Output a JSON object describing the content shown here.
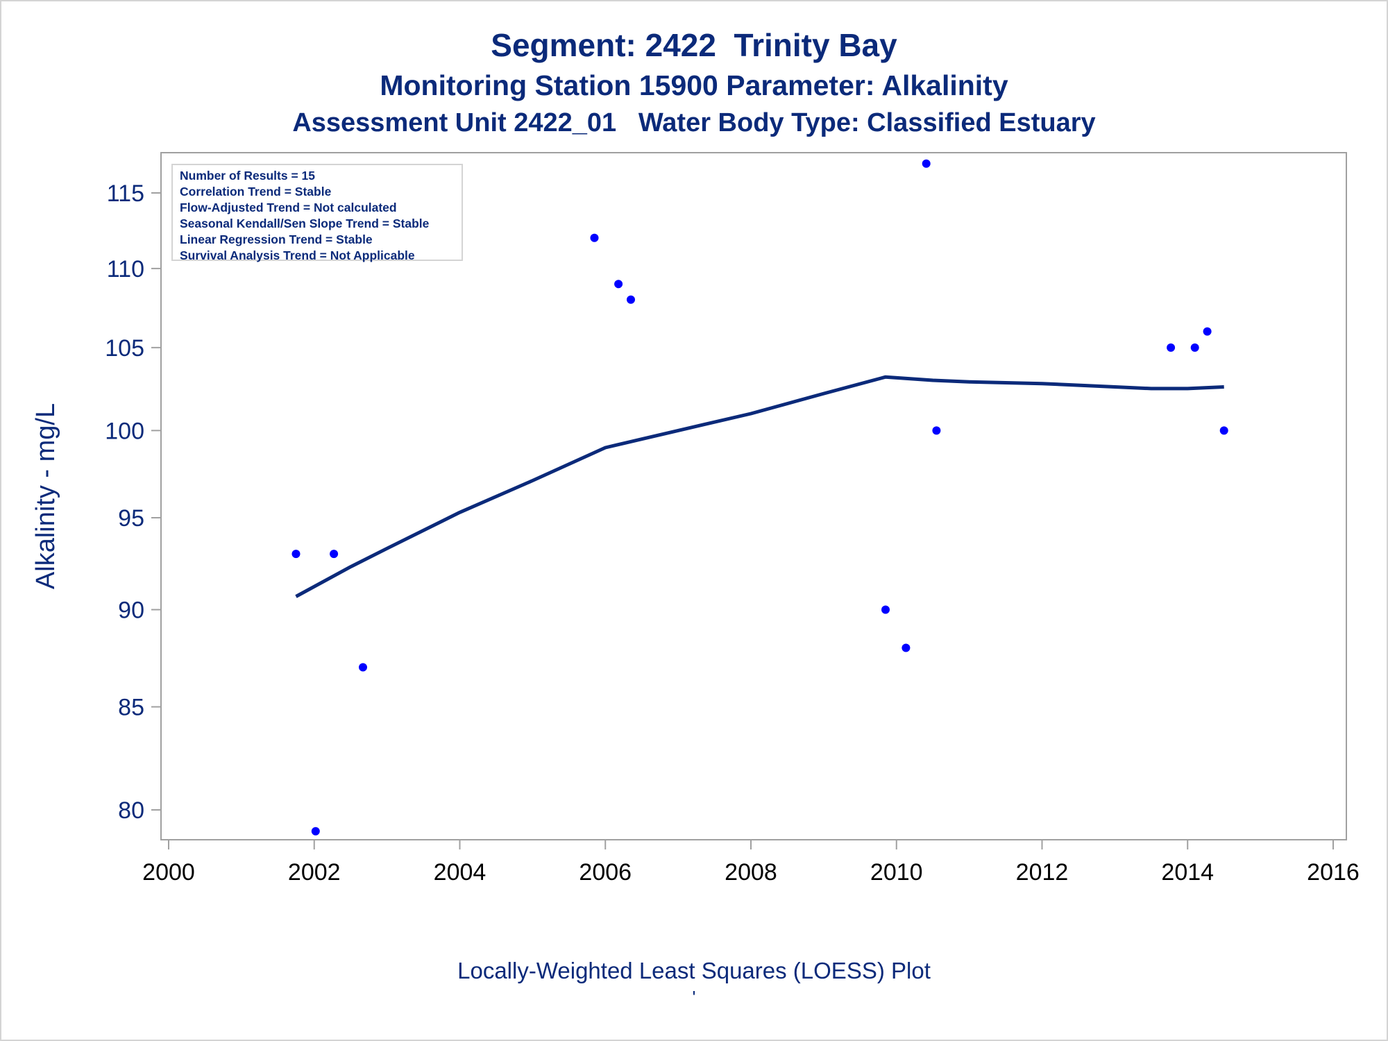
{
  "titles": {
    "line1": "Segment: 2422  Trinity Bay",
    "line2": "Monitoring Station 15900 Parameter: Alkalinity",
    "line3": "Assessment Unit 2422_01   Water Body Type: Classified Estuary"
  },
  "stats_box": [
    "Number of Results = 15",
    "Correlation Trend = Stable",
    "Flow-Adjusted Trend = Not calculated",
    "Seasonal Kendall/Sen Slope Trend = Stable",
    "Linear Regression Trend = Stable",
    "Survival Analysis Trend = Not Applicable"
  ],
  "footer": {
    "text": "Locally-Weighted Least Squares (LOESS) Plot",
    "mark": "'"
  },
  "colors": {
    "text": "#0b2a7a",
    "points": "#0000ff",
    "loess_line": "#0b2a7a",
    "frame": "#a0a0a0"
  },
  "chart_data": {
    "type": "scatter",
    "xlabel": "",
    "ylabel": "Alkalinity - mg/L",
    "xlim": [
      2000,
      2016
    ],
    "ylim": [
      78.4,
      117.2
    ],
    "y_scale": "log",
    "xticks": [
      2000,
      2002,
      2004,
      2006,
      2008,
      2010,
      2012,
      2014,
      2016
    ],
    "yticks": [
      80,
      85,
      90,
      95,
      100,
      105,
      110,
      115
    ],
    "series": [
      {
        "type": "scatter",
        "points": [
          [
            2001.75,
            93
          ],
          [
            2002.02,
            79
          ],
          [
            2002.27,
            93
          ],
          [
            2002.67,
            87
          ],
          [
            2005.85,
            112
          ],
          [
            2006.18,
            109
          ],
          [
            2006.35,
            108
          ],
          [
            2009.85,
            90
          ],
          [
            2010.13,
            88
          ],
          [
            2010.41,
            117
          ],
          [
            2010.55,
            100
          ],
          [
            2013.77,
            105
          ],
          [
            2014.1,
            105
          ],
          [
            2014.27,
            106
          ],
          [
            2014.5,
            100
          ]
        ]
      },
      {
        "type": "line",
        "points": [
          [
            2001.75,
            90.7
          ],
          [
            2002.5,
            92.3
          ],
          [
            2003.0,
            93.3
          ],
          [
            2004.0,
            95.3
          ],
          [
            2005.0,
            97.1
          ],
          [
            2006.0,
            99.0
          ],
          [
            2006.5,
            99.5
          ],
          [
            2007.0,
            100.0
          ],
          [
            2008.0,
            101.0
          ],
          [
            2009.0,
            102.2
          ],
          [
            2009.85,
            103.2
          ],
          [
            2010.5,
            103.0
          ],
          [
            2011.0,
            102.9
          ],
          [
            2012.0,
            102.8
          ],
          [
            2013.0,
            102.6
          ],
          [
            2013.5,
            102.5
          ],
          [
            2014.0,
            102.5
          ],
          [
            2014.5,
            102.6
          ]
        ]
      }
    ],
    "grid": false
  }
}
